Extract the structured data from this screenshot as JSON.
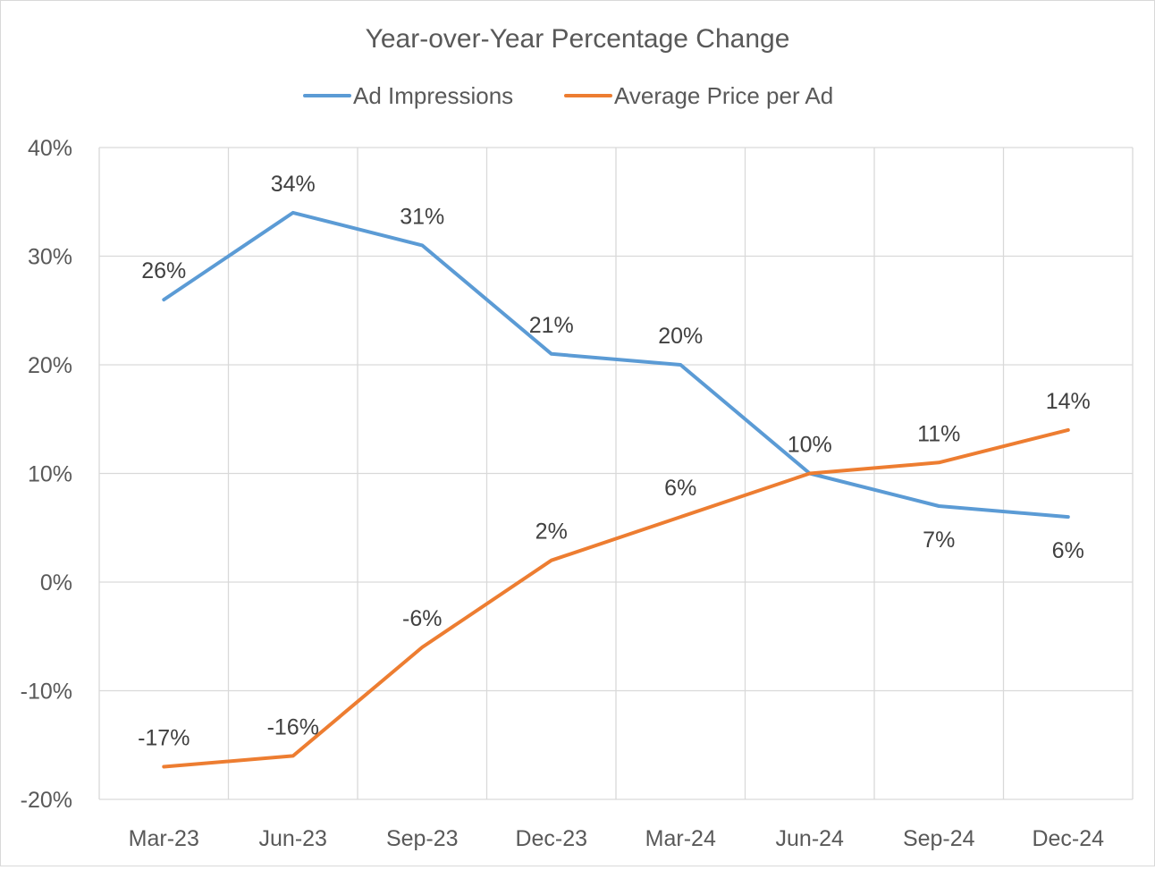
{
  "chart_data": {
    "type": "line",
    "title": "Year-over-Year Percentage Change",
    "xlabel": "",
    "ylabel": "",
    "categories": [
      "Mar-23",
      "Jun-23",
      "Sep-23",
      "Dec-23",
      "Mar-24",
      "Jun-24",
      "Sep-24",
      "Dec-24"
    ],
    "ylim": [
      -20,
      40
    ],
    "y_ticks": [
      -20,
      -10,
      0,
      10,
      20,
      30,
      40
    ],
    "y_tick_labels": [
      "-20%",
      "-10%",
      "0%",
      "10%",
      "20%",
      "30%",
      "40%"
    ],
    "grid": true,
    "legend_position": "top-center",
    "series": [
      {
        "name": "Ad Impressions",
        "color": "#5b9bd5",
        "values": [
          26,
          34,
          31,
          21,
          20,
          10,
          7,
          6
        ],
        "labels": [
          "26%",
          "34%",
          "31%",
          "21%",
          "20%",
          "10%",
          "7%",
          "6%"
        ],
        "label_position": [
          "above",
          "above",
          "above",
          "above",
          "above",
          "above",
          "below",
          "below"
        ]
      },
      {
        "name": "Average Price per Ad",
        "color": "#ed7d31",
        "values": [
          -17,
          -16,
          -6,
          2,
          6,
          10,
          11,
          14
        ],
        "labels": [
          "-17%",
          "-16%",
          "-6%",
          "2%",
          "6%",
          "",
          "11%",
          "14%"
        ],
        "label_position": [
          "above",
          "above",
          "above",
          "above",
          "above",
          "above",
          "above",
          "above"
        ]
      }
    ]
  }
}
